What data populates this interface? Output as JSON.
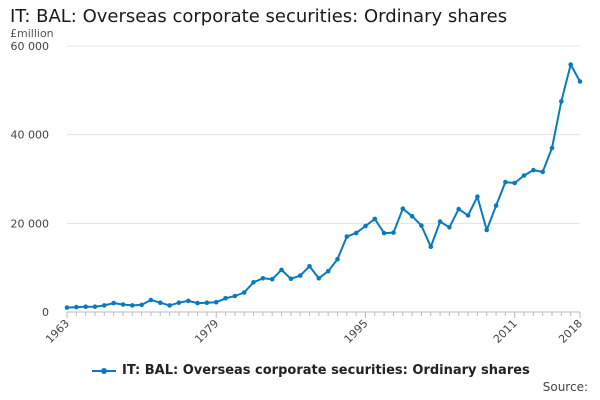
{
  "chart_data": {
    "type": "line",
    "title": "IT: BAL: Overseas corporate securities: Ordinary shares",
    "ylabel": "£million",
    "xlabel": "",
    "ylim": [
      0,
      60000
    ],
    "yticks": [
      0,
      20000,
      40000,
      60000
    ],
    "ytick_labels": [
      "0",
      "20 000",
      "40 000",
      "60 000"
    ],
    "xticks": [
      1963,
      1979,
      1995,
      2011,
      2018
    ],
    "xlim": [
      1963,
      2018
    ],
    "grid": true,
    "legend_position": "bottom",
    "color": "#0a7abf",
    "series": [
      {
        "name": "IT: BAL: Overseas corporate securities: Ordinary shares",
        "x": [
          1963,
          1964,
          1965,
          1966,
          1967,
          1968,
          1969,
          1970,
          1971,
          1972,
          1973,
          1974,
          1975,
          1976,
          1977,
          1978,
          1979,
          1980,
          1981,
          1982,
          1983,
          1984,
          1985,
          1986,
          1987,
          1988,
          1989,
          1990,
          1991,
          1992,
          1993,
          1994,
          1995,
          1996,
          1997,
          1998,
          1999,
          2000,
          2001,
          2002,
          2003,
          2004,
          2005,
          2006,
          2007,
          2008,
          2009,
          2010,
          2011,
          2012,
          2013,
          2014,
          2015,
          2016,
          2017,
          2018
        ],
        "values": [
          1000,
          1100,
          1200,
          1200,
          1500,
          2000,
          1700,
          1500,
          1600,
          2700,
          2100,
          1500,
          2100,
          2500,
          2000,
          2100,
          2200,
          3100,
          3600,
          4400,
          6700,
          7600,
          7400,
          9500,
          7500,
          8200,
          10300,
          7600,
          9200,
          11900,
          17000,
          17800,
          19400,
          21000,
          17800,
          17900,
          23300,
          21600,
          19500,
          14700,
          20400,
          19100,
          23200,
          21800,
          26000,
          18500,
          24000,
          29300,
          29100,
          30800,
          32000,
          31600,
          37000,
          47500,
          55800,
          52000
        ]
      }
    ]
  },
  "source_label": "Source:"
}
